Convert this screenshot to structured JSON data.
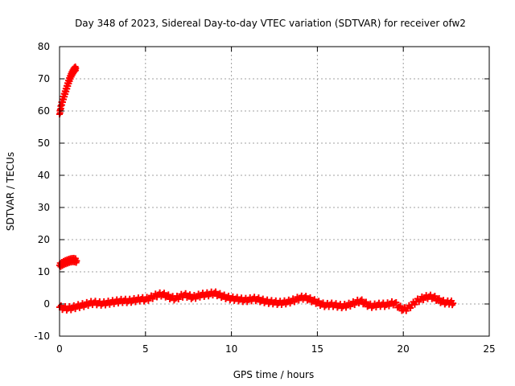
{
  "chart_data": {
    "type": "scatter",
    "title": "Day 348 of 2023, Sidereal Day-to-day VTEC variation (SDTVAR) for receiver ofw2",
    "xlabel": "GPS time / hours",
    "ylabel": "SDTVAR / TECUs",
    "xlim": [
      0,
      25
    ],
    "ylim": [
      -10,
      80
    ],
    "xticks": [
      0,
      5,
      10,
      15,
      20,
      25
    ],
    "xtick_labels": [
      "0",
      "5",
      "10",
      "15",
      "20",
      "25"
    ],
    "yticks": [
      -10,
      0,
      10,
      20,
      30,
      40,
      50,
      60,
      70,
      80
    ],
    "ytick_labels": [
      "-10",
      "0",
      "10",
      "20",
      "30",
      "40",
      "50",
      "60",
      "70",
      "80"
    ],
    "grid": true,
    "marker": "plus",
    "color": "#ff0000",
    "series": [
      {
        "name": "upper branch",
        "x": [
          0.0,
          0.05,
          0.1,
          0.15,
          0.2,
          0.25,
          0.3,
          0.35,
          0.4,
          0.45,
          0.5,
          0.55,
          0.6,
          0.65,
          0.7,
          0.75,
          0.8,
          0.85,
          0.9,
          0.95
        ],
        "y": [
          59.0,
          60.5,
          61.8,
          62.8,
          63.6,
          64.5,
          65.3,
          66.1,
          66.9,
          67.8,
          68.6,
          69.4,
          70.1,
          70.8,
          71.4,
          71.9,
          72.4,
          72.8,
          73.1,
          73.3
        ]
      },
      {
        "name": "middle branch",
        "x": [
          0.0,
          0.1,
          0.2,
          0.3,
          0.4,
          0.5,
          0.6,
          0.7,
          0.8,
          0.9,
          1.0
        ],
        "y": [
          12.0,
          12.3,
          12.6,
          12.9,
          13.1,
          13.3,
          13.5,
          13.6,
          13.7,
          13.6,
          13.4
        ]
      },
      {
        "name": "main series",
        "x": [
          0.0,
          0.25,
          0.5,
          0.75,
          1.0,
          1.25,
          1.5,
          1.75,
          2.0,
          2.25,
          2.5,
          2.75,
          3.0,
          3.25,
          3.5,
          3.75,
          4.0,
          4.25,
          4.5,
          4.75,
          5.0,
          5.25,
          5.5,
          5.75,
          6.0,
          6.25,
          6.5,
          6.75,
          7.0,
          7.25,
          7.5,
          7.75,
          8.0,
          8.25,
          8.5,
          8.75,
          9.0,
          9.25,
          9.5,
          9.75,
          10.0,
          10.25,
          10.5,
          10.75,
          11.0,
          11.25,
          11.5,
          11.75,
          12.0,
          12.25,
          12.5,
          12.75,
          13.0,
          13.25,
          13.5,
          13.75,
          14.0,
          14.25,
          14.5,
          14.75,
          15.0,
          15.25,
          15.5,
          15.75,
          16.0,
          16.25,
          16.5,
          16.75,
          17.0,
          17.25,
          17.5,
          17.75,
          18.0,
          18.25,
          18.5,
          18.75,
          19.0,
          19.25,
          19.5,
          19.75,
          20.0,
          20.25,
          20.5,
          20.75,
          21.0,
          21.25,
          21.5,
          21.75,
          22.0,
          22.25,
          22.5,
          22.75,
          22.9
        ],
        "y": [
          -1.0,
          -1.3,
          -1.4,
          -1.2,
          -0.8,
          -0.5,
          -0.2,
          0.2,
          0.4,
          0.2,
          0.1,
          0.3,
          0.5,
          0.7,
          0.9,
          1.0,
          0.9,
          1.1,
          1.3,
          1.5,
          1.4,
          1.8,
          2.4,
          2.9,
          3.0,
          2.5,
          1.9,
          1.7,
          2.3,
          2.8,
          2.5,
          2.0,
          2.4,
          2.8,
          2.9,
          3.1,
          3.4,
          2.9,
          2.4,
          2.0,
          1.7,
          1.6,
          1.4,
          1.2,
          1.3,
          1.6,
          1.5,
          1.1,
          0.8,
          0.6,
          0.5,
          0.3,
          0.4,
          0.6,
          0.9,
          1.4,
          1.9,
          2.0,
          1.6,
          1.0,
          0.5,
          -0.1,
          -0.4,
          -0.2,
          -0.3,
          -0.6,
          -0.7,
          -0.4,
          0.0,
          0.5,
          1.0,
          0.3,
          -0.5,
          -0.6,
          -0.3,
          -0.2,
          -0.3,
          0.1,
          0.3,
          -0.9,
          -1.8,
          -1.4,
          -0.3,
          0.8,
          1.5,
          2.0,
          2.3,
          2.1,
          1.4,
          0.7,
          0.4,
          0.5,
          0.2
        ]
      }
    ]
  }
}
